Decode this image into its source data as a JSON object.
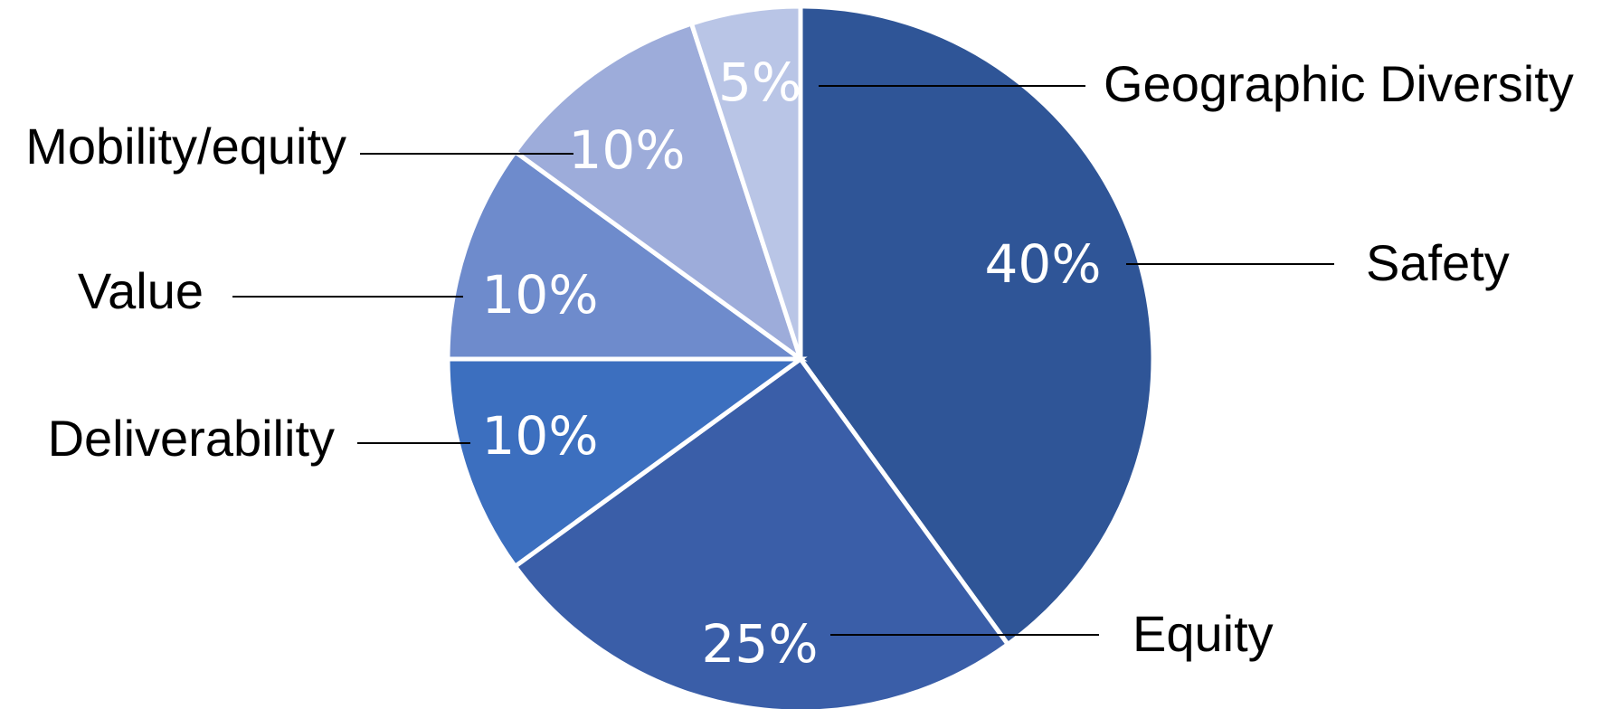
{
  "chart_data": {
    "type": "pie",
    "title": "",
    "start_angle_deg": 0,
    "direction": "clockwise",
    "slices": [
      {
        "label": "Safety",
        "value": 40,
        "value_label": "40%",
        "color": "#2f5597"
      },
      {
        "label": "Equity",
        "value": 25,
        "value_label": "25%",
        "color": "#3a5ea8"
      },
      {
        "label": "Deliverability",
        "value": 10,
        "value_label": "10%",
        "color": "#3c6fbf"
      },
      {
        "label": "Value",
        "value": 10,
        "value_label": "10%",
        "color": "#6e8bcc"
      },
      {
        "label": "Mobility/equity",
        "value": 10,
        "value_label": "10%",
        "color": "#9dacda"
      },
      {
        "label": "Geographic Diversity",
        "value": 5,
        "value_label": "5%",
        "color": "#b9c5e6"
      }
    ]
  }
}
